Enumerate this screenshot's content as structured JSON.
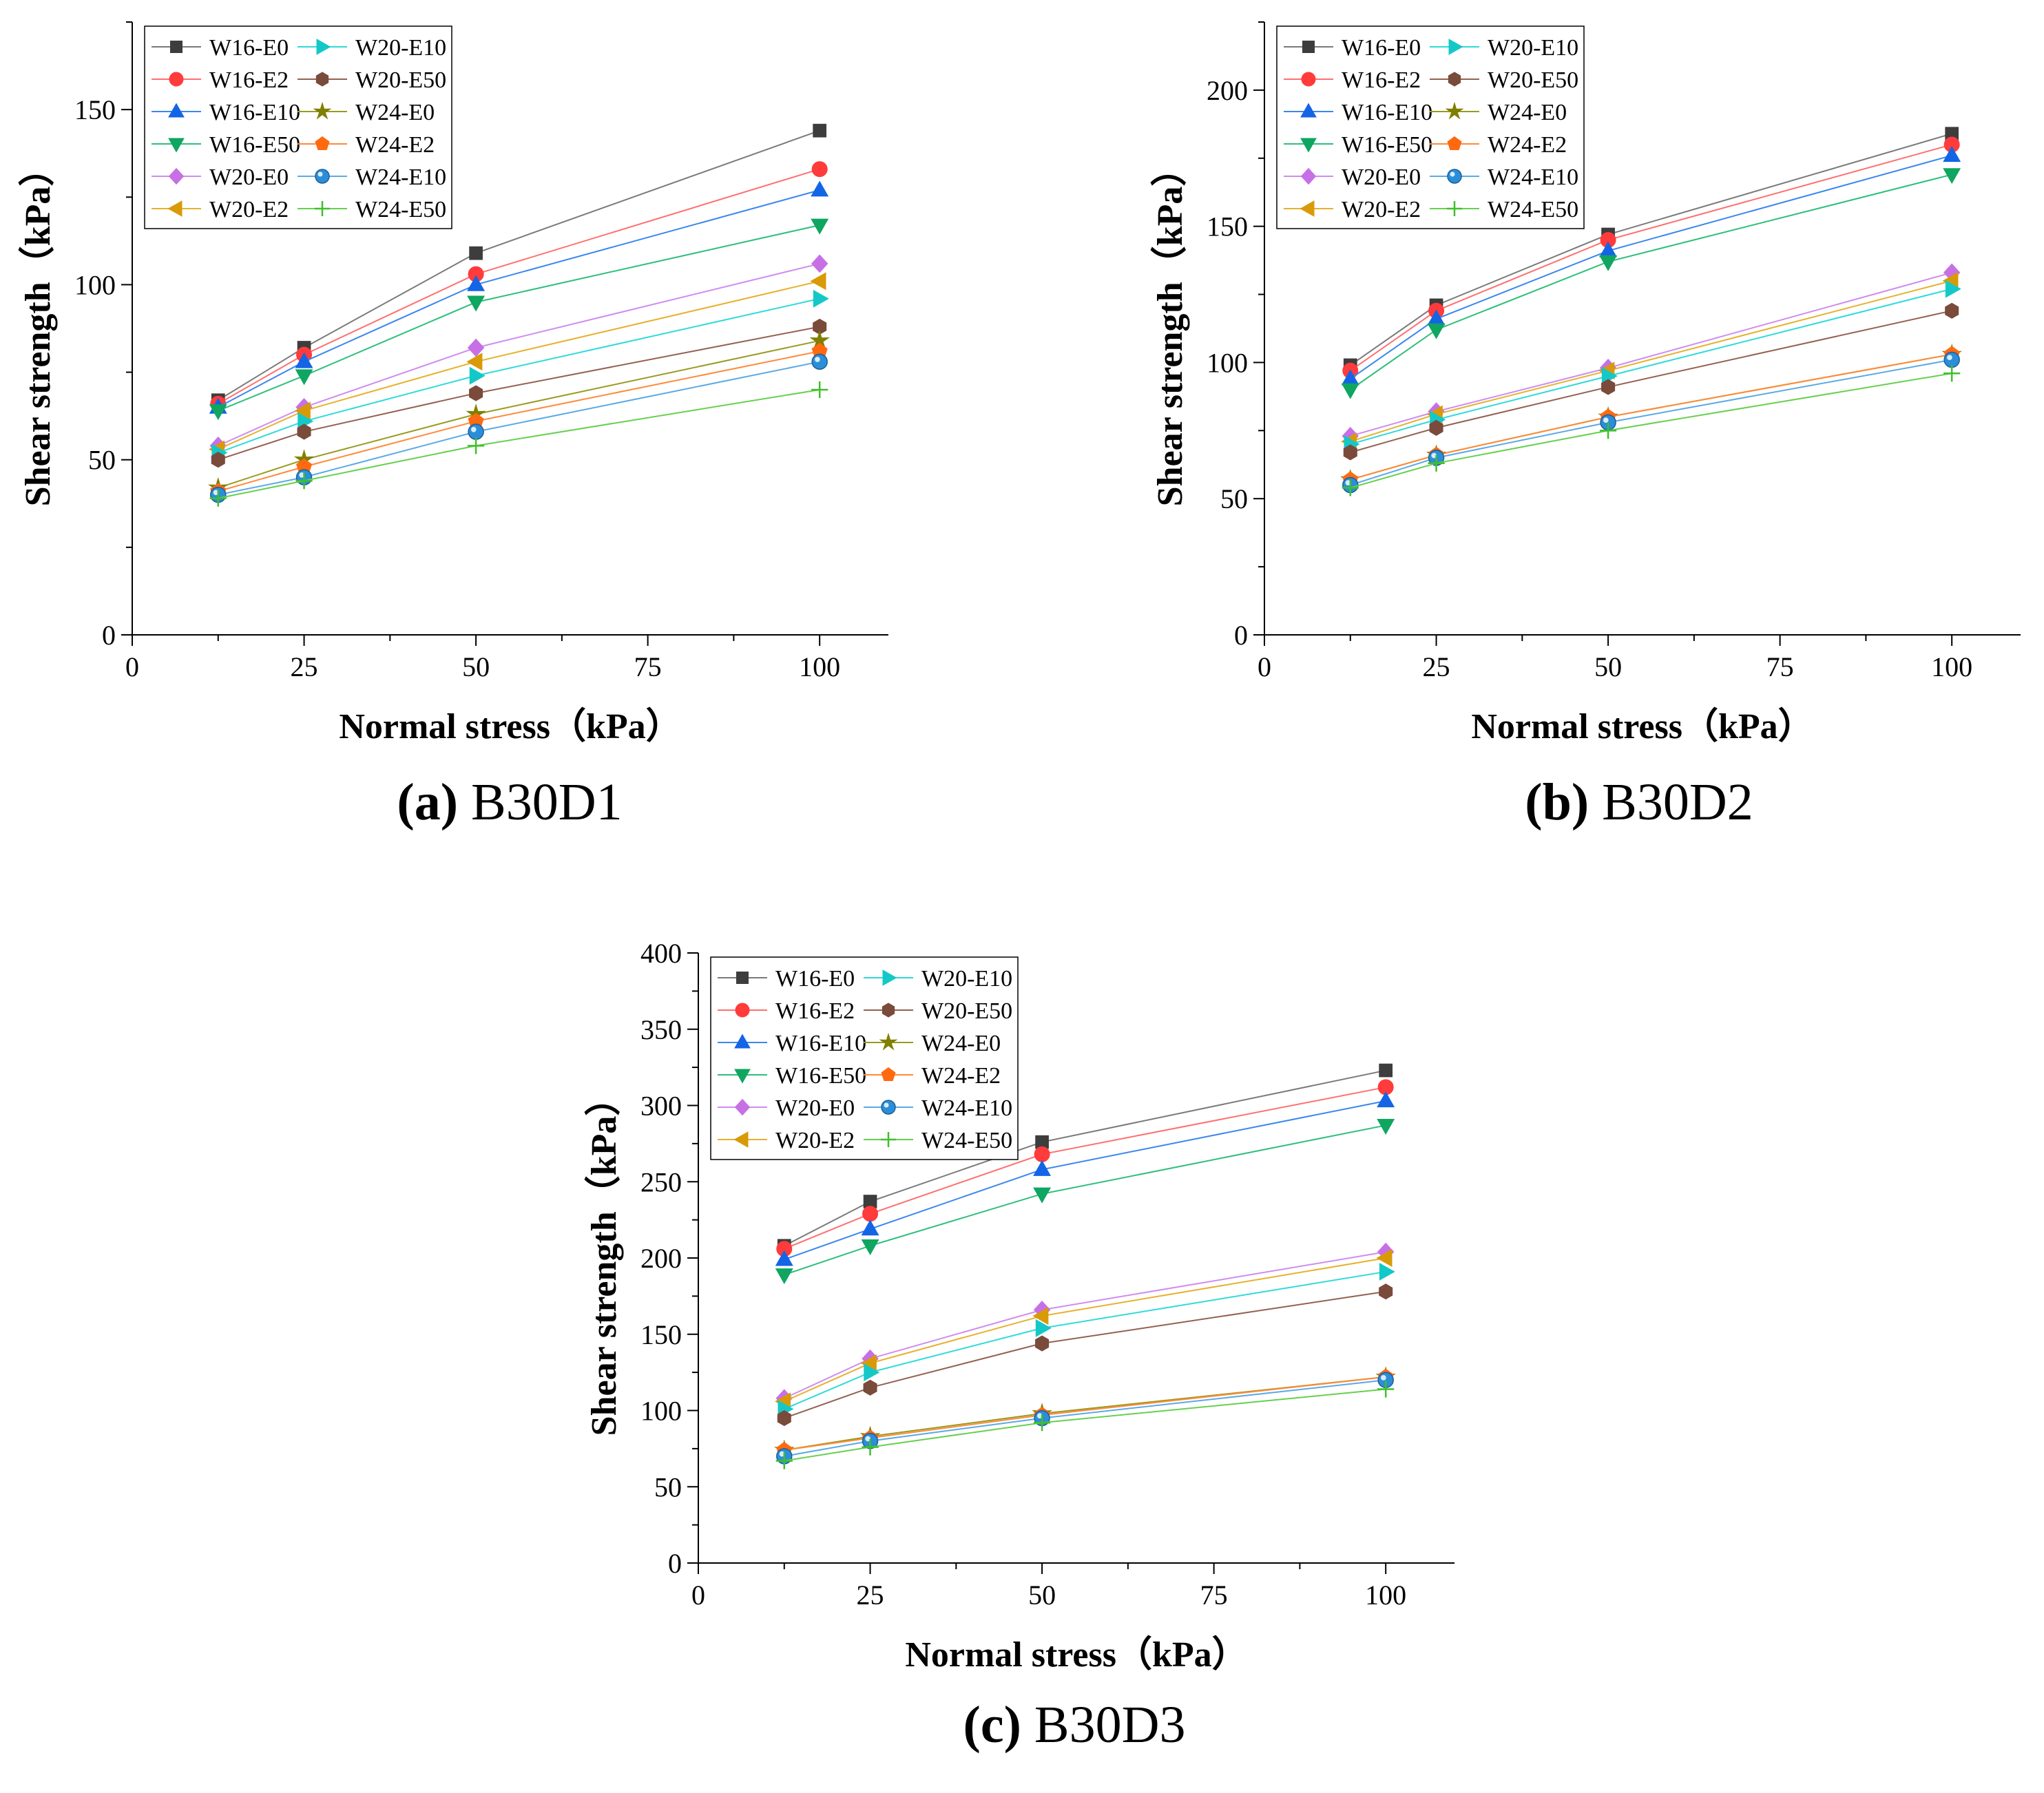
{
  "chart_data": [
    {
      "type": "line",
      "panel_id": "a",
      "caption_letter": "(a)",
      "caption_text": " B30D1",
      "xlabel": "Normal stress（kPa）",
      "ylabel": "Shear strength（kPa）",
      "xlim": [
        0,
        110
      ],
      "ylim": [
        0,
        175
      ],
      "xticks": [
        0,
        25,
        50,
        75,
        100
      ],
      "yticks": [
        0,
        50,
        100,
        150
      ],
      "legend": "top-left",
      "grid": false,
      "x": [
        12.5,
        25,
        50,
        100
      ],
      "series": [
        {
          "name": "W16-E0",
          "values": [
            67,
            82,
            109,
            144
          ]
        },
        {
          "name": "W16-E2",
          "values": [
            66,
            80,
            103,
            133
          ]
        },
        {
          "name": "W16-E10",
          "values": [
            65,
            78,
            100,
            127
          ]
        },
        {
          "name": "W16-E50",
          "values": [
            64,
            74,
            95,
            117
          ]
        },
        {
          "name": "W20-E0",
          "values": [
            54,
            65,
            82,
            106
          ]
        },
        {
          "name": "W20-E2",
          "values": [
            53,
            64,
            78,
            101
          ]
        },
        {
          "name": "W20-E10",
          "values": [
            52,
            61,
            74,
            96
          ]
        },
        {
          "name": "W20-E50",
          "values": [
            50,
            58,
            69,
            88
          ]
        },
        {
          "name": "W24-E0",
          "values": [
            42,
            50,
            63,
            84
          ]
        },
        {
          "name": "W24-E2",
          "values": [
            41,
            48,
            61,
            81
          ]
        },
        {
          "name": "W24-E10",
          "values": [
            40,
            45,
            58,
            78
          ]
        },
        {
          "name": "W24-E50",
          "values": [
            39,
            44,
            54,
            70
          ]
        }
      ]
    },
    {
      "type": "line",
      "panel_id": "b",
      "caption_letter": "(b)",
      "caption_text": " B30D2",
      "xlabel": "Normal stress（kPa）",
      "ylabel": "Shear strength（kPa）",
      "xlim": [
        0,
        110
      ],
      "ylim": [
        0,
        225
      ],
      "xticks": [
        0,
        25,
        50,
        75,
        100
      ],
      "yticks": [
        0,
        50,
        100,
        150,
        200
      ],
      "legend": "top-left",
      "grid": false,
      "x": [
        12.5,
        25,
        50,
        100
      ],
      "series": [
        {
          "name": "W16-E0",
          "values": [
            99,
            121,
            147,
            184
          ]
        },
        {
          "name": "W16-E2",
          "values": [
            97,
            119,
            145,
            180
          ]
        },
        {
          "name": "W16-E10",
          "values": [
            94,
            116,
            141,
            176
          ]
        },
        {
          "name": "W16-E50",
          "values": [
            90,
            112,
            137,
            169
          ]
        },
        {
          "name": "W20-E0",
          "values": [
            73,
            82,
            98,
            133
          ]
        },
        {
          "name": "W20-E2",
          "values": [
            71,
            81,
            97,
            130
          ]
        },
        {
          "name": "W20-E10",
          "values": [
            70,
            79,
            95,
            127
          ]
        },
        {
          "name": "W20-E50",
          "values": [
            67,
            76,
            91,
            119
          ]
        },
        {
          "name": "W24-E0",
          "values": [
            57,
            66,
            80,
            103
          ]
        },
        {
          "name": "W24-E2",
          "values": [
            57,
            66,
            80,
            103
          ]
        },
        {
          "name": "W24-E10",
          "values": [
            55,
            65,
            78,
            101
          ]
        },
        {
          "name": "W24-E50",
          "values": [
            54,
            63,
            75,
            96
          ]
        }
      ]
    },
    {
      "type": "line",
      "panel_id": "c",
      "caption_letter": "(c)",
      "caption_text": " B30D3",
      "xlabel": "Normal stress（kPa）",
      "ylabel": "Shear strength（kPa）",
      "xlim": [
        0,
        110
      ],
      "ylim": [
        0,
        400
      ],
      "xticks": [
        0,
        25,
        50,
        75,
        100
      ],
      "yticks": [
        0,
        50,
        100,
        150,
        200,
        250,
        300,
        350,
        400
      ],
      "legend": "top-left",
      "grid": false,
      "x": [
        12.5,
        25,
        50,
        100
      ],
      "series": [
        {
          "name": "W16-E0",
          "values": [
            208,
            237,
            276,
            323
          ]
        },
        {
          "name": "W16-E2",
          "values": [
            206,
            229,
            268,
            312
          ]
        },
        {
          "name": "W16-E10",
          "values": [
            199,
            219,
            258,
            303
          ]
        },
        {
          "name": "W16-E50",
          "values": [
            189,
            208,
            242,
            287
          ]
        },
        {
          "name": "W20-E0",
          "values": [
            108,
            134,
            166,
            204
          ]
        },
        {
          "name": "W20-E2",
          "values": [
            106,
            131,
            162,
            200
          ]
        },
        {
          "name": "W20-E10",
          "values": [
            101,
            125,
            154,
            191
          ]
        },
        {
          "name": "W20-E50",
          "values": [
            95,
            115,
            144,
            178
          ]
        },
        {
          "name": "W24-E0",
          "values": [
            74,
            83,
            98,
            122
          ]
        },
        {
          "name": "W24-E2",
          "values": [
            74,
            82,
            97,
            122
          ]
        },
        {
          "name": "W24-E10",
          "values": [
            70,
            80,
            95,
            120
          ]
        },
        {
          "name": "W24-E50",
          "values": [
            67,
            76,
            92,
            114
          ]
        }
      ]
    }
  ],
  "series_styles": [
    {
      "color": "#3d3d3d",
      "line": "#7a7a7a",
      "marker": "square-marker"
    },
    {
      "color": "#ff3b3b",
      "line": "#ff7070",
      "marker": "circle-marker"
    },
    {
      "color": "#1464e6",
      "line": "#3a86f0",
      "marker": "triangle-up-marker"
    },
    {
      "color": "#0ea660",
      "line": "#2cbf7a",
      "marker": "triangle-down-marker"
    },
    {
      "color": "#c770e6",
      "line": "#cf8cef",
      "marker": "diamond-marker"
    },
    {
      "color": "#d99a08",
      "line": "#e6b12e",
      "marker": "triangle-left-marker"
    },
    {
      "color": "#14c8c8",
      "line": "#2fdada",
      "marker": "triangle-right-marker"
    },
    {
      "color": "#7a4a3a",
      "line": "#946050",
      "marker": "hexagon-marker"
    },
    {
      "color": "#7f7f00",
      "line": "#9a9a20",
      "marker": "star-marker"
    },
    {
      "color": "#ff6a10",
      "line": "#ff8a3a",
      "marker": "pentagon-marker"
    },
    {
      "color": "#2c8ed8",
      "line": "#5aaae6",
      "marker": "sphere-marker"
    },
    {
      "color": "#3fbf2a",
      "line": "#66d04f",
      "marker": "plus-marker"
    }
  ]
}
